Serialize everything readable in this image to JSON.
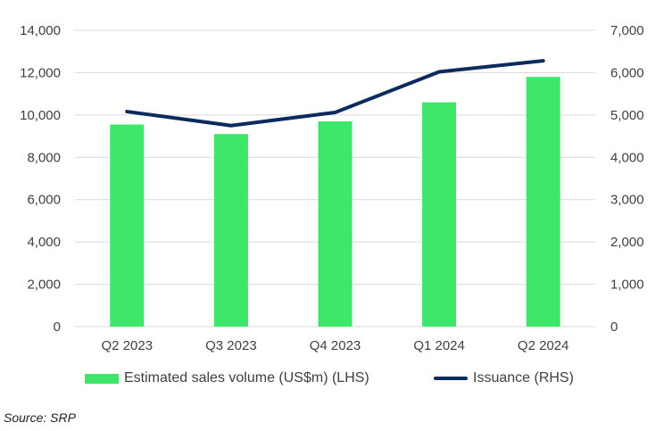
{
  "chart_data": {
    "type": "bar",
    "categories": [
      "Q2 2023",
      "Q3 2023",
      "Q4 2023",
      "Q1 2024",
      "Q2 2024"
    ],
    "series": [
      {
        "name": "Estimated sales volume (US$m) (LHS)",
        "type": "bar",
        "axis": "left",
        "color": "#3ee66a",
        "values": [
          9550,
          9100,
          9700,
          10600,
          11800
        ]
      },
      {
        "name": "Issuance (RHS)",
        "type": "line",
        "axis": "right",
        "color": "#0b2b5e",
        "values": [
          5080,
          4750,
          5060,
          6020,
          6280
        ]
      }
    ],
    "ylim_left": [
      0,
      14000
    ],
    "ylim_right": [
      0,
      7000
    ],
    "yticks_left": [
      "0",
      "2,000",
      "4,000",
      "6,000",
      "8,000",
      "10,000",
      "12,000",
      "14,000"
    ],
    "yticks_right": [
      "0",
      "1,000",
      "2,000",
      "3,000",
      "4,000",
      "5,000",
      "6,000",
      "7,000"
    ],
    "grid": true,
    "legend": "bottom"
  },
  "source": "Source: SRP"
}
